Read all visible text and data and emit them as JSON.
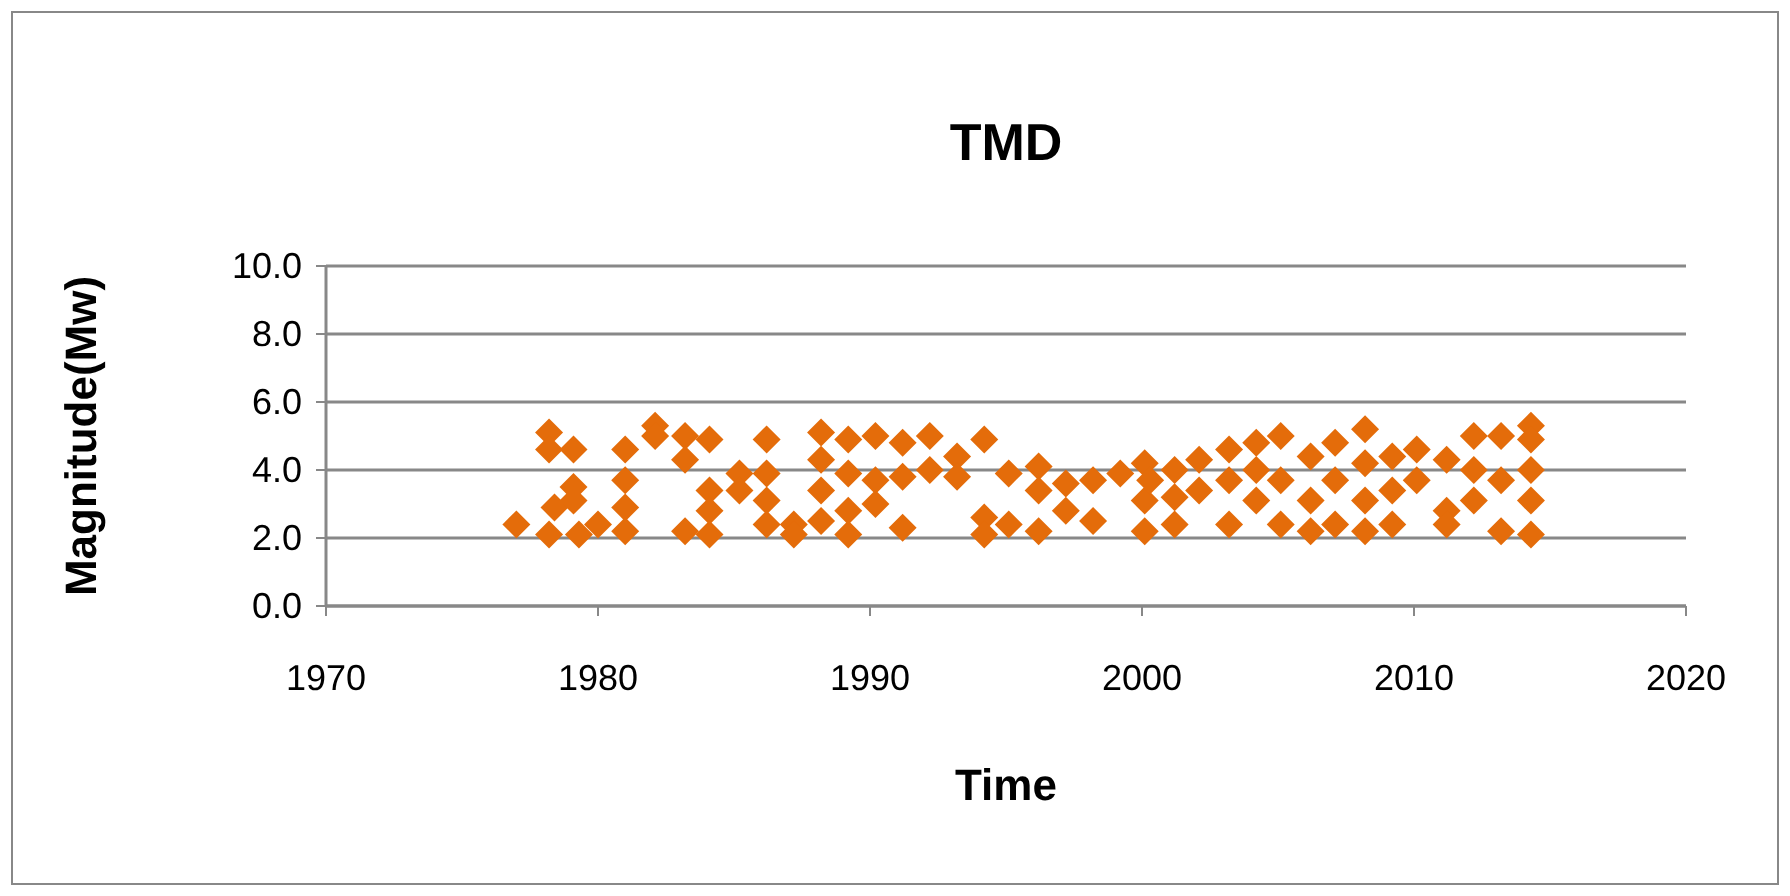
{
  "chart_data": {
    "type": "scatter",
    "title": "TMD",
    "xlabel": "Time",
    "ylabel": "Magnitude(Mw)",
    "marker": "diamond",
    "grid": "y",
    "xlim": [
      1970,
      2020
    ],
    "xticks": [
      1970,
      1980,
      1990,
      2000,
      2010,
      2020
    ],
    "ylim": [
      0,
      10
    ],
    "yticks": [
      {
        "value": 0,
        "label": "0.0"
      },
      {
        "value": 2,
        "label": "2.0"
      },
      {
        "value": 4,
        "label": "4.0"
      },
      {
        "value": 6,
        "label": "6.0"
      },
      {
        "value": 8,
        "label": "8.0"
      },
      {
        "value": 10,
        "label": "10.0"
      }
    ],
    "series": [
      {
        "color": "#e46c0a",
        "x": [
          1977,
          1978.2,
          1978.2,
          1978.2,
          1978.4,
          1979.1,
          1979.1,
          1979.1,
          1979.3,
          1980,
          1981,
          1981,
          1981,
          1981,
          1982.1,
          1982.1,
          1983.2,
          1983.2,
          1983.2,
          1984.1,
          1984.1,
          1984.1,
          1984.1,
          1985.2,
          1985.2,
          1986.2,
          1986.2,
          1986.2,
          1986.2,
          1987.2,
          1987.2,
          1988.2,
          1988.2,
          1988.2,
          1988.2,
          1989.2,
          1989.2,
          1989.2,
          1989.2,
          1990.2,
          1990.2,
          1990.2,
          1991.2,
          1991.2,
          1991.2,
          1992.2,
          1992.2,
          1993.2,
          1993.2,
          1994.2,
          1994.2,
          1994.2,
          1995.1,
          1995.1,
          1996.2,
          1996.2,
          1996.2,
          1997.2,
          1997.2,
          1998.2,
          1998.2,
          1999.2,
          2000.1,
          2000.1,
          2000.1,
          2000.3,
          2001.2,
          2001.2,
          2001.2,
          2002.1,
          2002.1,
          2003.2,
          2003.2,
          2003.2,
          2004.2,
          2004.2,
          2004.2,
          2005.1,
          2005.1,
          2005.1,
          2006.2,
          2006.2,
          2006.2,
          2007.1,
          2007.1,
          2007.1,
          2008.2,
          2008.2,
          2008.2,
          2008.2,
          2009.2,
          2009.2,
          2009.2,
          2010.1,
          2010.1,
          2011.2,
          2011.2,
          2011.2,
          2012.2,
          2012.2,
          2012.2,
          2013.2,
          2013.2,
          2013.2,
          2014.3,
          2014.3,
          2014.3,
          2014.3,
          2014.3
        ],
        "values": [
          2.4,
          5.1,
          4.6,
          2.1,
          2.9,
          4.6,
          3.5,
          3.1,
          2.1,
          2.4,
          4.6,
          3.7,
          2.9,
          2.2,
          5.3,
          5.0,
          5.0,
          4.3,
          2.2,
          4.9,
          3.4,
          2.1,
          2.8,
          3.9,
          3.4,
          4.9,
          3.9,
          2.4,
          3.1,
          2.4,
          2.1,
          5.1,
          4.3,
          3.4,
          2.5,
          4.9,
          3.9,
          2.1,
          2.8,
          5.0,
          3.7,
          3.0,
          4.8,
          2.3,
          3.8,
          5.0,
          4.0,
          4.4,
          3.8,
          4.9,
          2.6,
          2.1,
          3.9,
          2.4,
          4.1,
          3.4,
          2.2,
          3.6,
          2.8,
          3.7,
          2.5,
          3.9,
          4.2,
          3.1,
          2.2,
          3.7,
          4.0,
          2.4,
          3.2,
          4.3,
          3.4,
          4.6,
          2.4,
          3.7,
          4.8,
          4.0,
          3.1,
          5.0,
          2.4,
          3.7,
          4.4,
          3.1,
          2.2,
          4.8,
          3.7,
          2.4,
          5.2,
          4.2,
          2.2,
          3.1,
          4.4,
          2.4,
          3.4,
          4.6,
          3.7,
          4.3,
          2.8,
          2.4,
          5.0,
          4.0,
          3.1,
          5.0,
          2.2,
          3.7,
          5.3,
          4.9,
          4.0,
          3.1,
          2.1
        ]
      }
    ]
  }
}
